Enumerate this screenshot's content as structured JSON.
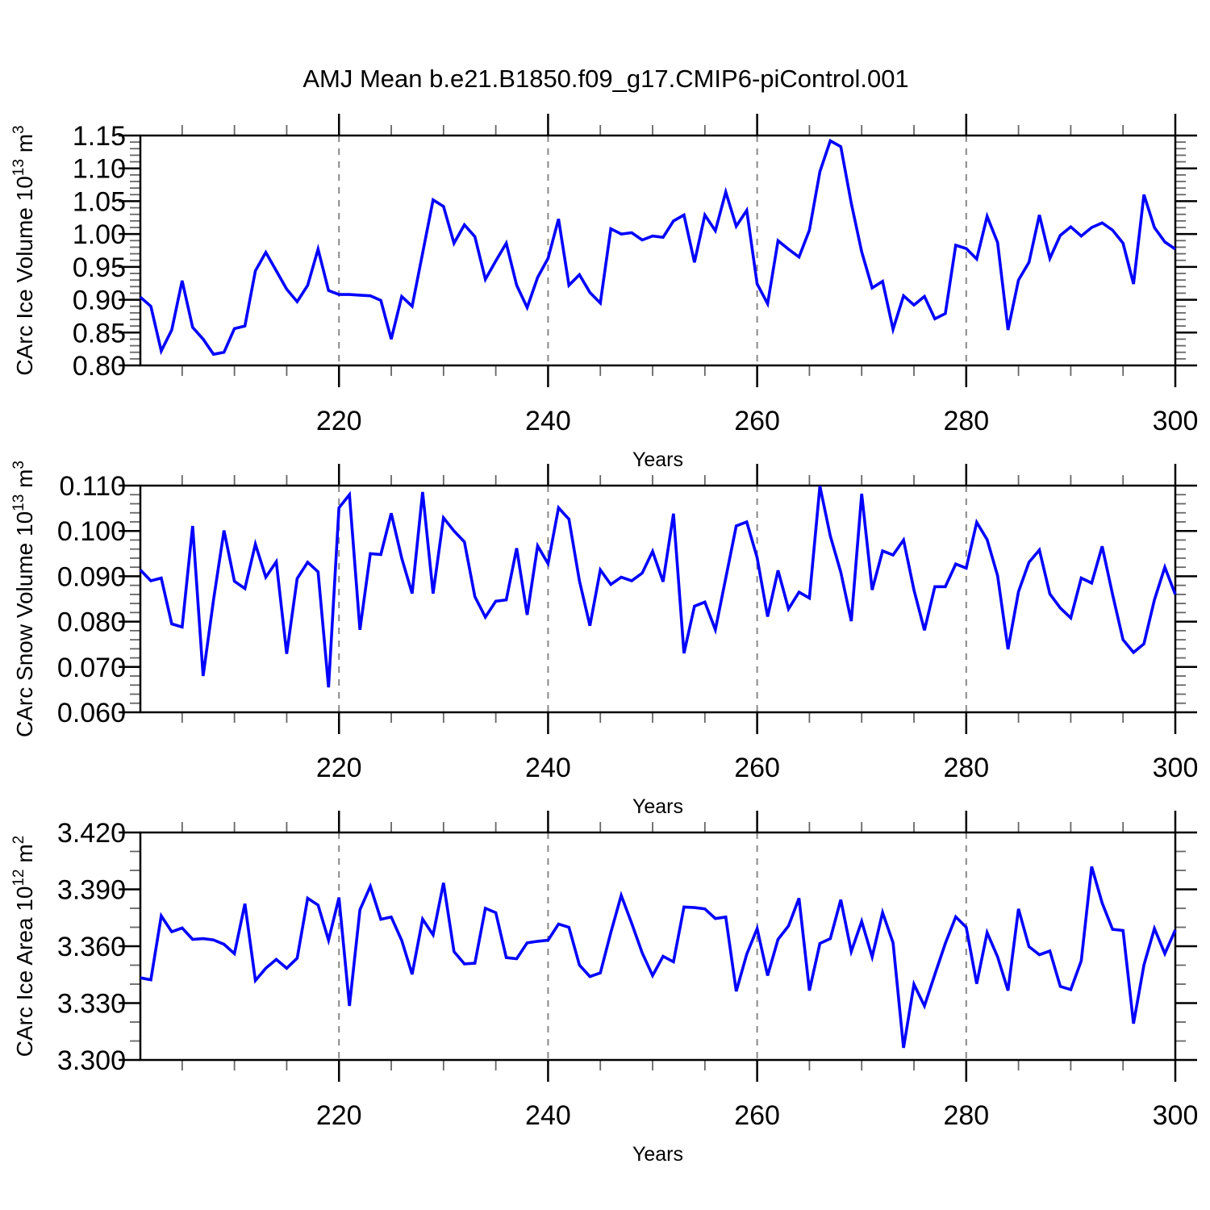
{
  "chart_data": {
    "type": "line",
    "title": "AMJ Mean b.e21.B1850.f09_g17.CMIP6-piControl.001",
    "line_color": "#0000ff",
    "x": {
      "label": "Years",
      "start": 201,
      "end": 300,
      "tick_values": [
        220,
        240,
        260,
        280,
        300
      ],
      "tick_labels": [
        "220",
        "240",
        "260",
        "280",
        "300"
      ],
      "minor_step": 5,
      "gridlines": [
        220,
        240,
        260,
        280
      ]
    },
    "panels": [
      {
        "name": "ice-volume",
        "ylabel": {
          "text": "CArc Ice Volume 10",
          "sup": "13",
          "unit": " m",
          "sup2": "3"
        },
        "ylim": [
          0.8,
          1.15
        ],
        "ytick_values": [
          0.8,
          0.85,
          0.9,
          0.95,
          1.0,
          1.05,
          1.1,
          1.15
        ],
        "ytick_labels": [
          "0.80",
          "0.85",
          "0.90",
          "0.95",
          "1.00",
          "1.05",
          "1.10",
          "1.15"
        ],
        "yminor_step": 0.01,
        "values": [
          0.904,
          0.89,
          0.822,
          0.854,
          0.929,
          0.858,
          0.84,
          0.817,
          0.82,
          0.856,
          0.86,
          0.944,
          0.972,
          0.944,
          0.916,
          0.897,
          0.922,
          0.977,
          0.914,
          0.908,
          0.908,
          0.907,
          0.906,
          0.899,
          0.84,
          0.905,
          0.89,
          0.971,
          1.052,
          1.042,
          0.986,
          1.014,
          0.996,
          0.931,
          0.959,
          0.986,
          0.922,
          0.888,
          0.934,
          0.963,
          1.023,
          0.922,
          0.938,
          0.911,
          0.895,
          1.008,
          1.0,
          1.002,
          0.991,
          0.997,
          0.995,
          1.02,
          1.029,
          0.957,
          1.029,
          1.005,
          1.064,
          1.012,
          1.036,
          0.924,
          0.894,
          0.99,
          0.977,
          0.965,
          1.006,
          1.095,
          1.142,
          1.133,
          1.047,
          0.973,
          0.918,
          0.928,
          0.855,
          0.906,
          0.892,
          0.905,
          0.871,
          0.879,
          0.983,
          0.978,
          0.962,
          1.027,
          0.987,
          0.854,
          0.93,
          0.957,
          1.029,
          0.963,
          0.998,
          1.011,
          0.997,
          1.01,
          1.017,
          1.006,
          0.986,
          0.924,
          1.06,
          1.01,
          0.988,
          0.977
        ]
      },
      {
        "name": "snow-volume",
        "ylabel": {
          "text": "CArc Snow Volume 10",
          "sup": "13",
          "unit": " m",
          "sup2": "3"
        },
        "ylim": [
          0.06,
          0.11
        ],
        "ytick_values": [
          0.06,
          0.07,
          0.08,
          0.09,
          0.1,
          0.11
        ],
        "ytick_labels": [
          "0.060",
          "0.070",
          "0.080",
          "0.090",
          "0.100",
          "0.110"
        ],
        "yminor_step": 0.002,
        "values": [
          0.0914,
          0.089,
          0.0896,
          0.0795,
          0.0788,
          0.1011,
          0.068,
          0.0848,
          0.1001,
          0.0889,
          0.0873,
          0.0971,
          0.0898,
          0.0932,
          0.0729,
          0.0895,
          0.0931,
          0.091,
          0.0655,
          0.1051,
          0.108,
          0.0782,
          0.095,
          0.0948,
          0.1039,
          0.094,
          0.0862,
          0.1086,
          0.0862,
          0.1029,
          0.1,
          0.0976,
          0.0855,
          0.081,
          0.0845,
          0.0848,
          0.0962,
          0.0815,
          0.0967,
          0.0928,
          0.1051,
          0.1026,
          0.089,
          0.0791,
          0.0914,
          0.0882,
          0.0898,
          0.089,
          0.0907,
          0.0955,
          0.0888,
          0.1038,
          0.073,
          0.0834,
          0.0843,
          0.0782,
          0.0896,
          0.1011,
          0.102,
          0.0941,
          0.0811,
          0.0913,
          0.0828,
          0.0865,
          0.0852,
          0.1099,
          0.0989,
          0.0909,
          0.0801,
          0.1082,
          0.087,
          0.0956,
          0.0947,
          0.098,
          0.087,
          0.0781,
          0.0877,
          0.0877,
          0.0927,
          0.0918,
          0.1019,
          0.0981,
          0.0901,
          0.0739,
          0.0866,
          0.0931,
          0.0958,
          0.0861,
          0.083,
          0.0808,
          0.0896,
          0.0885,
          0.0966,
          0.086,
          0.076,
          0.0732,
          0.0751,
          0.0848,
          0.092,
          0.086
        ]
      },
      {
        "name": "ice-area",
        "ylabel": {
          "text": "CArc Ice Area 10",
          "sup": "12",
          "unit": " m",
          "sup2": "2"
        },
        "ylim": [
          3.3,
          3.42
        ],
        "ytick_values": [
          3.3,
          3.33,
          3.36,
          3.39,
          3.42
        ],
        "ytick_labels": [
          "3.300",
          "3.330",
          "3.360",
          "3.390",
          "3.420"
        ],
        "yminor_step": 0.01,
        "values": [
          3.3433,
          3.3423,
          3.376,
          3.3676,
          3.3696,
          3.3636,
          3.364,
          3.3633,
          3.361,
          3.3561,
          3.3824,
          3.3419,
          3.3484,
          3.353,
          3.3484,
          3.3537,
          3.3853,
          3.3817,
          3.3632,
          3.3856,
          3.3285,
          3.3792,
          3.3916,
          3.3742,
          3.3754,
          3.363,
          3.3452,
          3.3743,
          3.366,
          3.3934,
          3.3572,
          3.3507,
          3.351,
          3.38,
          3.3777,
          3.354,
          3.3534,
          3.3618,
          3.3626,
          3.3632,
          3.3717,
          3.37,
          3.3501,
          3.344,
          3.3459,
          3.3672,
          3.3868,
          3.3721,
          3.3565,
          3.3445,
          3.3547,
          3.3518,
          3.3807,
          3.3804,
          3.3797,
          3.3746,
          3.3754,
          3.3362,
          3.3558,
          3.3693,
          3.3445,
          3.3636,
          3.3707,
          3.3853,
          3.3366,
          3.3615,
          3.364,
          3.3845,
          3.3572,
          3.3731,
          3.3544,
          3.3778,
          3.3618,
          3.3064,
          3.3399,
          3.3285,
          3.3451,
          3.3615,
          3.3755,
          3.37,
          3.3402,
          3.3672,
          3.3544,
          3.3366,
          3.3797,
          3.3598,
          3.3555,
          3.3575,
          3.3388,
          3.3371,
          3.3523,
          3.402,
          3.3828,
          3.3689,
          3.3683,
          3.3192,
          3.3501,
          3.3693,
          3.3561,
          3.3686
        ]
      }
    ]
  }
}
